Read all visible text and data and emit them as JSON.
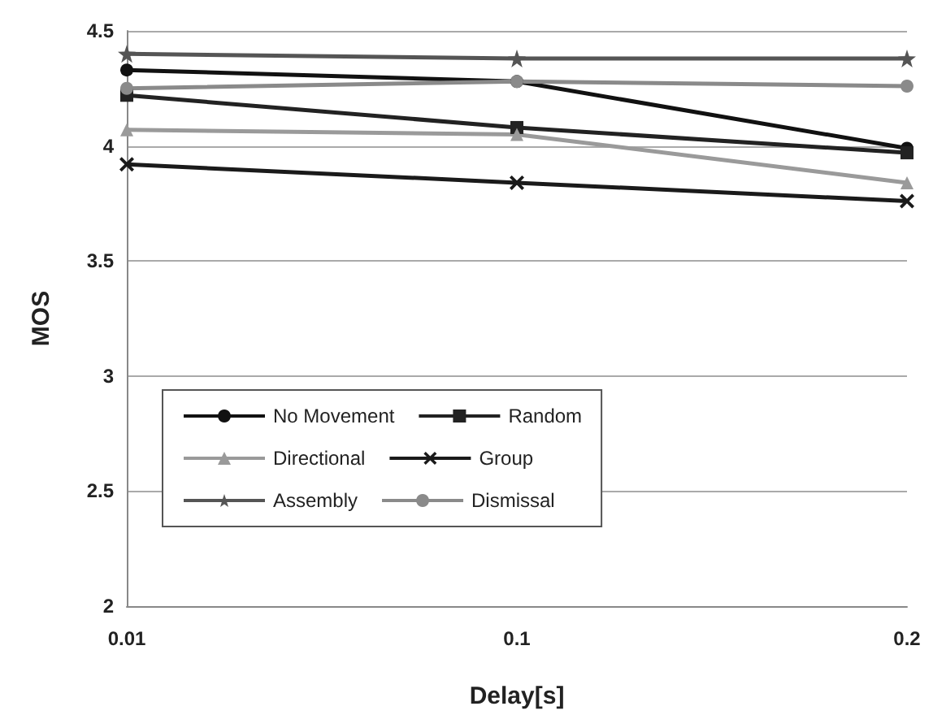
{
  "chart_data": {
    "type": "line",
    "xlabel": "Delay[s]",
    "ylabel": "MOS",
    "categories": [
      "0.01",
      "0.1",
      "0.2"
    ],
    "ylim": [
      2,
      4.5
    ],
    "yticks": [
      2,
      2.5,
      3,
      3.5,
      4,
      4.5
    ],
    "grid": "y",
    "legend": "bottom left",
    "series": [
      {
        "name": "No Movement",
        "color": "#111111",
        "marker": "circle",
        "values": [
          4.33,
          4.28,
          3.99
        ]
      },
      {
        "name": "Random",
        "color": "#222222",
        "marker": "square",
        "values": [
          4.22,
          4.08,
          3.97
        ]
      },
      {
        "name": "Directional",
        "color": "#9a9a9a",
        "marker": "triangle",
        "values": [
          4.07,
          4.05,
          3.84
        ]
      },
      {
        "name": "Group",
        "color": "#1a1a1a",
        "marker": "cross",
        "values": [
          3.92,
          3.84,
          3.76
        ]
      },
      {
        "name": "Assembly",
        "color": "#555555",
        "marker": "star",
        "values": [
          4.4,
          4.38,
          4.38
        ]
      },
      {
        "name": "Dismissal",
        "color": "#8a8a8a",
        "marker": "circle",
        "values": [
          4.25,
          4.28,
          4.26
        ]
      }
    ]
  }
}
